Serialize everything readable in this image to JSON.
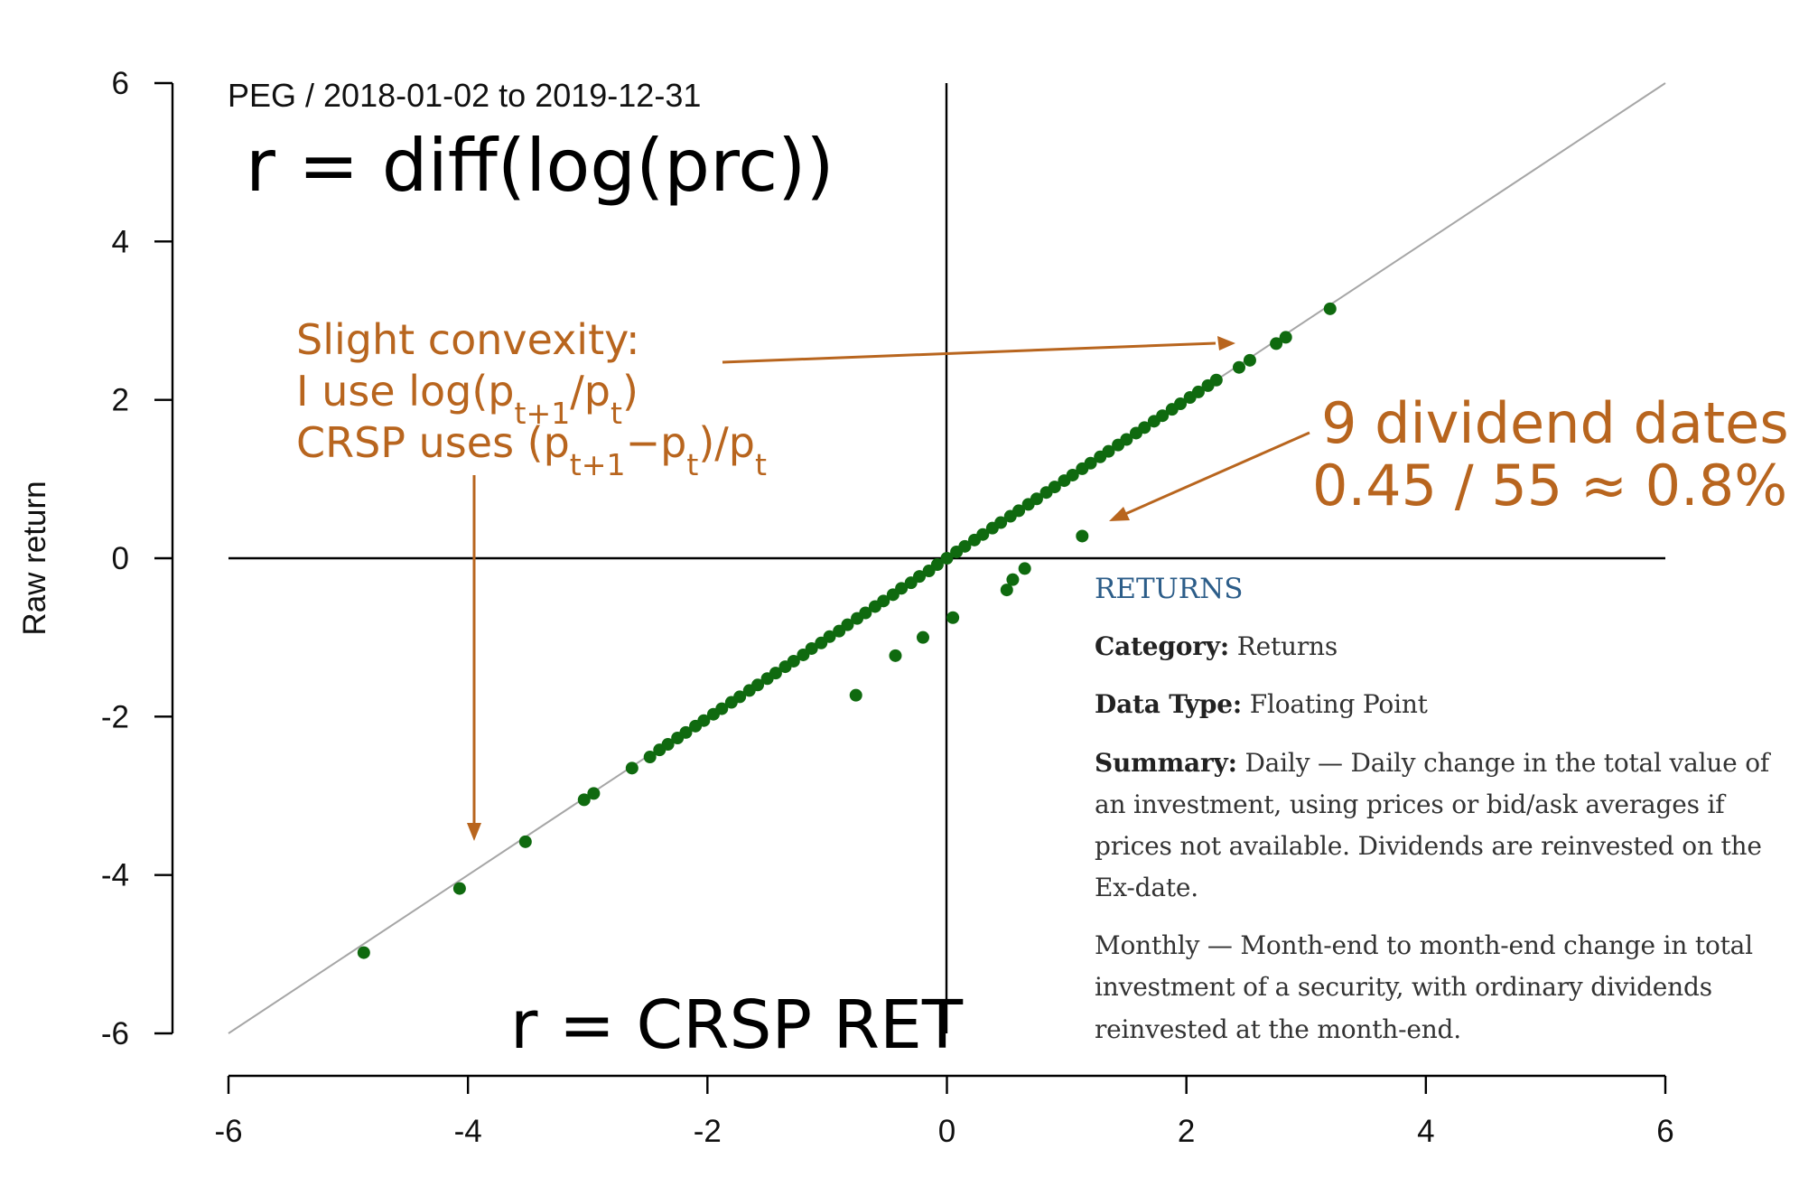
{
  "chart_data": {
    "type": "scatter",
    "subtitle": "PEG / 2018-01-02 to 2019-12-31",
    "ylabel": "Raw return",
    "xlabel": "",
    "xlim": [
      -6,
      6
    ],
    "ylim": [
      -6,
      6
    ],
    "x_ticks": [
      "-6",
      "-4",
      "-2",
      "0",
      "2",
      "4",
      "6"
    ],
    "y_ticks": [
      "-6",
      "-4",
      "-2",
      "0",
      "2",
      "4",
      "6"
    ],
    "reference_line": {
      "slope": 1,
      "intercept": 0
    },
    "zero_lines": true,
    "point_color": "#0f6a0f",
    "reference_color": "#a6a6a6",
    "annotation_color": "#b8651e",
    "dividend_points": [
      {
        "x": 0.05,
        "y": -0.75
      },
      {
        "x": -0.2,
        "y": -1.0
      },
      {
        "x": -0.43,
        "y": -1.23
      },
      {
        "x": -0.76,
        "y": -1.73
      },
      {
        "x": 0.5,
        "y": -0.4
      },
      {
        "x": 0.55,
        "y": -0.27
      },
      {
        "x": 0.65,
        "y": -0.13
      },
      {
        "x": 1.13,
        "y": 0.28
      },
      {
        "x": -3.52,
        "y": -3.58
      }
    ],
    "core_points": [
      {
        "x": -4.87,
        "y": -4.98
      },
      {
        "x": -4.07,
        "y": -4.17
      },
      {
        "x": -3.03,
        "y": -3.05
      },
      {
        "x": -2.95,
        "y": -2.97
      },
      {
        "x": -2.63,
        "y": -2.65
      },
      {
        "x": -2.48,
        "y": -2.51
      },
      {
        "x": -2.4,
        "y": -2.42
      },
      {
        "x": -2.33,
        "y": -2.35
      },
      {
        "x": -2.25,
        "y": -2.27
      },
      {
        "x": -2.18,
        "y": -2.2
      },
      {
        "x": -2.1,
        "y": -2.12
      },
      {
        "x": -2.03,
        "y": -2.05
      },
      {
        "x": -1.95,
        "y": -1.97
      },
      {
        "x": -1.88,
        "y": -1.9
      },
      {
        "x": -1.8,
        "y": -1.82
      },
      {
        "x": -1.73,
        "y": -1.75
      },
      {
        "x": -1.65,
        "y": -1.67
      },
      {
        "x": -1.58,
        "y": -1.6
      },
      {
        "x": -1.5,
        "y": -1.52
      },
      {
        "x": -1.43,
        "y": -1.45
      },
      {
        "x": -1.35,
        "y": -1.37
      },
      {
        "x": -1.28,
        "y": -1.3
      },
      {
        "x": -1.2,
        "y": -1.22
      },
      {
        "x": -1.13,
        "y": -1.14
      },
      {
        "x": -1.05,
        "y": -1.07
      },
      {
        "x": -0.98,
        "y": -0.99
      },
      {
        "x": -0.9,
        "y": -0.92
      },
      {
        "x": -0.83,
        "y": -0.84
      },
      {
        "x": -0.75,
        "y": -0.76
      },
      {
        "x": -0.68,
        "y": -0.69
      },
      {
        "x": -0.6,
        "y": -0.61
      },
      {
        "x": -0.53,
        "y": -0.54
      },
      {
        "x": -0.45,
        "y": -0.46
      },
      {
        "x": -0.38,
        "y": -0.38
      },
      {
        "x": -0.3,
        "y": -0.31
      },
      {
        "x": -0.23,
        "y": -0.23
      },
      {
        "x": -0.15,
        "y": -0.16
      },
      {
        "x": -0.08,
        "y": -0.08
      },
      {
        "x": 0.0,
        "y": 0.0
      },
      {
        "x": 0.08,
        "y": 0.08
      },
      {
        "x": 0.15,
        "y": 0.15
      },
      {
        "x": 0.23,
        "y": 0.23
      },
      {
        "x": 0.3,
        "y": 0.3
      },
      {
        "x": 0.38,
        "y": 0.38
      },
      {
        "x": 0.45,
        "y": 0.45
      },
      {
        "x": 0.53,
        "y": 0.53
      },
      {
        "x": 0.6,
        "y": 0.6
      },
      {
        "x": 0.68,
        "y": 0.68
      },
      {
        "x": 0.75,
        "y": 0.75
      },
      {
        "x": 0.83,
        "y": 0.83
      },
      {
        "x": 0.9,
        "y": 0.9
      },
      {
        "x": 0.98,
        "y": 0.98
      },
      {
        "x": 1.05,
        "y": 1.05
      },
      {
        "x": 1.13,
        "y": 1.13
      },
      {
        "x": 1.2,
        "y": 1.2
      },
      {
        "x": 1.28,
        "y": 1.28
      },
      {
        "x": 1.35,
        "y": 1.35
      },
      {
        "x": 1.43,
        "y": 1.43
      },
      {
        "x": 1.5,
        "y": 1.5
      },
      {
        "x": 1.58,
        "y": 1.58
      },
      {
        "x": 1.65,
        "y": 1.65
      },
      {
        "x": 1.73,
        "y": 1.73
      },
      {
        "x": 1.8,
        "y": 1.8
      },
      {
        "x": 1.88,
        "y": 1.88
      },
      {
        "x": 1.95,
        "y": 1.95
      },
      {
        "x": 2.03,
        "y": 2.03
      },
      {
        "x": 2.1,
        "y": 2.1
      },
      {
        "x": 2.18,
        "y": 2.18
      },
      {
        "x": 2.25,
        "y": 2.25
      },
      {
        "x": 2.44,
        "y": 2.41
      },
      {
        "x": 2.53,
        "y": 2.5
      },
      {
        "x": 2.75,
        "y": 2.71
      },
      {
        "x": 2.83,
        "y": 2.79
      },
      {
        "x": 3.2,
        "y": 3.15
      }
    ]
  },
  "chart_text": {
    "subtitle": "PEG / 2018-01-02 to 2019-12-31",
    "formula_top": "r = diff(log(prc))",
    "formula_bottom": "r = CRSP RET",
    "annotation_left": {
      "line1": "Slight convexity:",
      "line2": "I use log(p",
      "line2_sub": "t+1",
      "line2_mid": "/p",
      "line2_sub2": "t",
      "line2_end": ")",
      "line3": "CRSP uses (p",
      "line3_sub": "t+1",
      "line3_mid": "−p",
      "line3_sub2": "t",
      "line3_mid2": ")/p",
      "line3_sub3": "t"
    },
    "annotation_right": {
      "line1": "9 dividend dates",
      "line2": "0.45 / 55 ≈ 0.8%"
    }
  },
  "panel": {
    "title": "RETURNS",
    "category_label": "Category:",
    "category_value": "Returns",
    "data_type_label": "Data Type:",
    "data_type_value": "Floating Point",
    "summary_label": "Summary:",
    "summary_value": "Daily — Daily change in the total value of an investment, using prices or bid/ask averages if prices not available. Dividends are reinvested on the Ex-date.",
    "monthly_text": "Monthly — Month-end to month-end change in total investment of a security, with ordinary dividends reinvested at the month-end."
  }
}
